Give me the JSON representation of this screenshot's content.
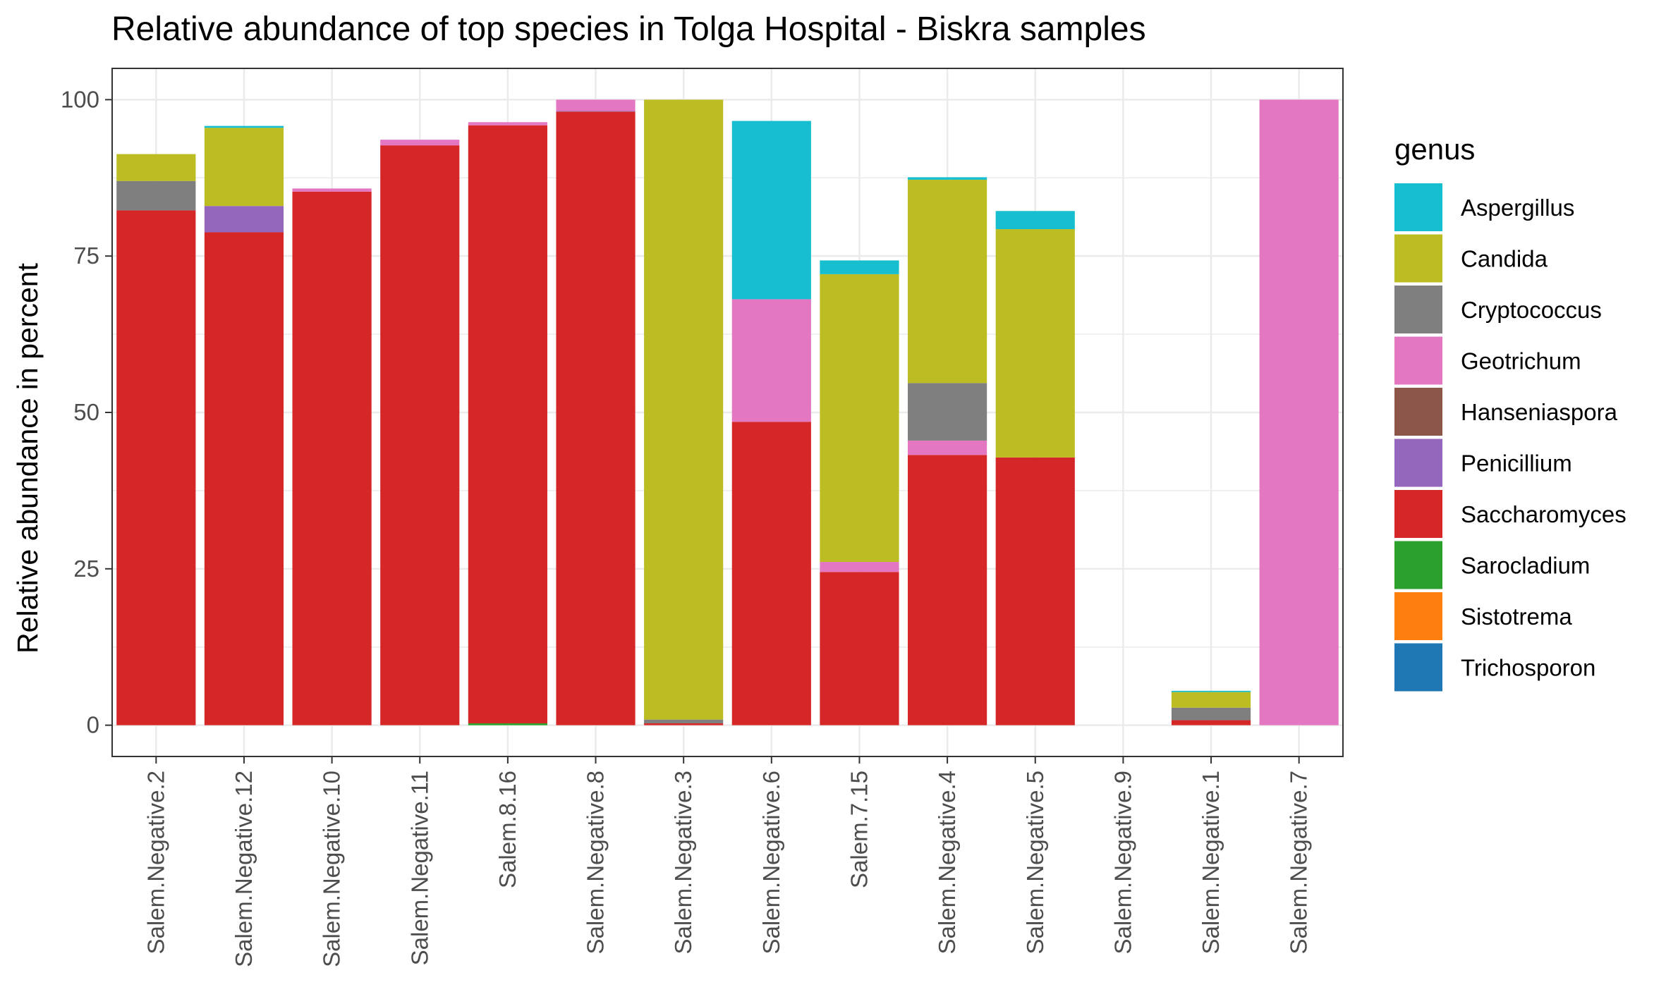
{
  "chart_data": {
    "type": "bar",
    "stacked": true,
    "title": "Relative abundance of top species in Tolga Hospital - Biskra  samples",
    "xlabel": "",
    "ylabel": "Relative abundance in percent",
    "ylim": [
      -5,
      105
    ],
    "yticks": [
      0,
      25,
      50,
      75,
      100
    ],
    "grid": true,
    "legend_position": "right",
    "legend_title": "genus",
    "categories": [
      "Salem.Negative.2",
      "Salem.Negative.12",
      "Salem.Negative.10",
      "Salem.Negative.11",
      "Salem.8.16",
      "Salem.Negative.8",
      "Salem.Negative.3",
      "Salem.Negative.6",
      "Salem.7.15",
      "Salem.Negative.4",
      "Salem.Negative.5",
      "Salem.Negative.9",
      "Salem.Negative.1",
      "Salem.Negative.7"
    ],
    "series": [
      {
        "name": "Trichosporon",
        "color": "#1F77B4",
        "values": [
          0,
          0,
          0,
          0,
          0,
          0,
          0,
          0,
          0,
          0,
          0,
          0,
          0,
          0
        ]
      },
      {
        "name": "Sistotrema",
        "color": "#FF7F0E",
        "values": [
          0,
          0,
          0,
          0,
          0,
          0,
          0,
          0,
          0,
          0,
          0,
          0,
          0,
          0
        ]
      },
      {
        "name": "Sarocladium",
        "color": "#2CA02C",
        "values": [
          0,
          0,
          0,
          0,
          0.3,
          0,
          0,
          0,
          0,
          0,
          0,
          0,
          0,
          0
        ]
      },
      {
        "name": "Saccharomyces",
        "color": "#D62728",
        "values": [
          82.3,
          78.8,
          85.3,
          92.7,
          95.6,
          98.1,
          0.3,
          48.5,
          24.5,
          43.2,
          42.8,
          0,
          0.8,
          0
        ]
      },
      {
        "name": "Penicillium",
        "color": "#9467BD",
        "values": [
          0,
          4.2,
          0,
          0,
          0,
          0.1,
          0,
          0,
          0,
          0,
          0,
          0,
          0,
          0
        ]
      },
      {
        "name": "Hanseniaspora",
        "color": "#8C564B",
        "values": [
          0,
          0,
          0,
          0,
          0,
          0,
          0,
          0,
          0,
          0,
          0,
          0,
          0,
          0
        ]
      },
      {
        "name": "Geotrichum",
        "color": "#E377C2",
        "values": [
          0,
          0,
          0.5,
          0.9,
          0.5,
          1.8,
          0,
          19.6,
          1.6,
          2.3,
          0,
          0,
          0,
          100
        ]
      },
      {
        "name": "Cryptococcus",
        "color": "#7F7F7F",
        "values": [
          4.7,
          0,
          0,
          0,
          0,
          0,
          0.6,
          0,
          0,
          9.2,
          0,
          0,
          2.0,
          0
        ]
      },
      {
        "name": "Candida",
        "color": "#BCBD22",
        "values": [
          4.3,
          12.5,
          0,
          0,
          0,
          0,
          99.1,
          0,
          46.0,
          32.5,
          36.5,
          0,
          2.5,
          0
        ]
      },
      {
        "name": "Aspergillus",
        "color": "#17BECF",
        "values": [
          0,
          0.3,
          0,
          0,
          0,
          0,
          0,
          28.5,
          2.2,
          0.4,
          2.9,
          0,
          0.2,
          0
        ]
      }
    ],
    "legend_order": [
      "Aspergillus",
      "Candida",
      "Cryptococcus",
      "Geotrichum",
      "Hanseniaspora",
      "Penicillium",
      "Saccharomyces",
      "Sarocladium",
      "Sistotrema",
      "Trichosporon"
    ]
  }
}
